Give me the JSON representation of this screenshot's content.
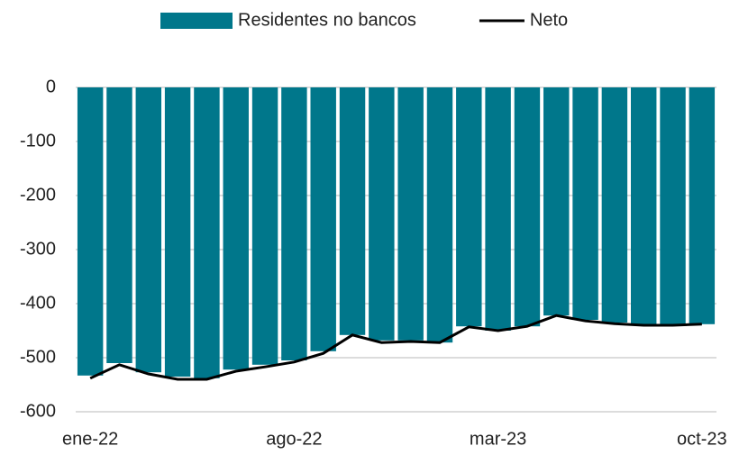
{
  "chart_data": {
    "type": "bar_line",
    "categories": [
      "ene-22",
      null,
      null,
      null,
      null,
      null,
      null,
      "ago-22",
      null,
      null,
      null,
      null,
      null,
      null,
      "mar-23",
      null,
      null,
      null,
      null,
      null,
      null,
      "oct-23"
    ],
    "series": [
      {
        "name": "Residentes no bancos",
        "type": "bar",
        "color": "#00778b",
        "values": [
          -533,
          -510,
          -527,
          -535,
          -538,
          -522,
          -513,
          -505,
          -488,
          -458,
          -468,
          -468,
          -472,
          -442,
          -450,
          -442,
          -422,
          -430,
          -435,
          -438,
          -440,
          -438
        ]
      },
      {
        "name": "Neto",
        "type": "line",
        "color": "#000000",
        "values": [
          -538,
          -513,
          -530,
          -540,
          -540,
          -525,
          -517,
          -508,
          -492,
          -458,
          -472,
          -470,
          -472,
          -443,
          -450,
          -442,
          -422,
          -432,
          -437,
          -440,
          -440,
          -438
        ]
      }
    ],
    "ylim": [
      -600,
      0
    ],
    "yticks": [
      0,
      -100,
      -200,
      -300,
      -400,
      -500,
      -600
    ],
    "grid": true
  }
}
